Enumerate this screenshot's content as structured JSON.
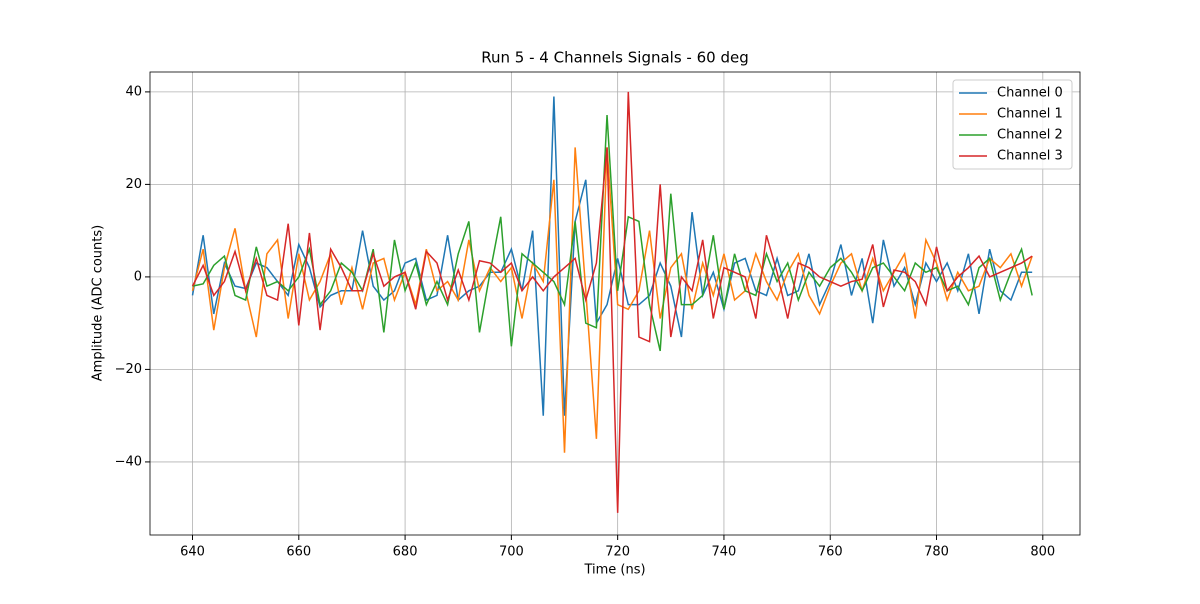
{
  "chart_data": {
    "type": "line",
    "title": "Run 5 - 4 Channels Signals - 60 deg",
    "x_label": "Time (ns)",
    "y_label": "Amplitude (ADC counts)",
    "x": [
      640,
      642,
      644,
      646,
      648,
      650,
      652,
      654,
      656,
      658,
      660,
      662,
      664,
      666,
      668,
      670,
      672,
      674,
      676,
      678,
      680,
      682,
      684,
      686,
      688,
      690,
      692,
      694,
      696,
      698,
      700,
      702,
      704,
      706,
      708,
      710,
      712,
      714,
      716,
      718,
      720,
      722,
      724,
      726,
      728,
      730,
      732,
      734,
      736,
      738,
      740,
      742,
      744,
      746,
      748,
      750,
      752,
      754,
      756,
      758,
      760,
      762,
      764,
      766,
      768,
      770,
      772,
      774,
      776,
      778,
      780,
      782,
      784,
      786,
      788,
      790,
      792,
      794,
      796,
      798
    ],
    "series": [
      {
        "name": "Channel 0",
        "color": "#1f77b4",
        "values": [
          -4,
          9,
          -8,
          3,
          -2,
          -2.5,
          3,
          2,
          -1,
          -4,
          7,
          2,
          -6.5,
          -4,
          -3,
          -3,
          10,
          -2,
          -5,
          -3,
          3,
          4,
          -5,
          -4,
          9,
          -5,
          -3,
          -2,
          1,
          1,
          6,
          -3,
          10,
          -30,
          39,
          -30,
          12,
          21,
          -10,
          -6,
          4,
          -6,
          -6,
          -4,
          3,
          -2,
          -13,
          14,
          -4,
          1,
          -7,
          3,
          4,
          -3,
          -4,
          4,
          -4,
          -3,
          5,
          -6,
          -1,
          7,
          -4,
          4,
          -10,
          8,
          -2,
          2,
          -6,
          3,
          -1,
          3,
          -3,
          5,
          -8,
          6,
          -3,
          -5,
          1,
          1
        ]
      },
      {
        "name": "Channel 1",
        "color": "#ff7f0e",
        "values": [
          -3,
          6,
          -11.5,
          2,
          10.5,
          -3,
          -13,
          5,
          8,
          -9,
          5,
          -5,
          -1,
          5,
          -6,
          2,
          -7,
          3,
          4,
          -5,
          1,
          -6,
          6,
          -3,
          -1,
          -5,
          8,
          -3,
          2,
          -1,
          2,
          -9,
          3,
          -1,
          21,
          -38,
          28,
          -3,
          -35,
          28,
          -6,
          -7,
          -3,
          10,
          -9,
          2,
          5,
          -7,
          3,
          -4,
          5,
          -5,
          -3,
          5,
          -1,
          -5,
          1,
          5,
          -4,
          -8,
          -2,
          3,
          5,
          -3,
          4,
          -3,
          1,
          5,
          -9,
          8,
          3,
          -5,
          1,
          -3,
          -2,
          4,
          2,
          5,
          -2,
          4.5
        ]
      },
      {
        "name": "Channel 2",
        "color": "#2ca02c",
        "values": [
          -2,
          -1.5,
          2.5,
          4.5,
          -4,
          -5,
          6.5,
          -2,
          -1,
          -3,
          0,
          6,
          -6,
          -3,
          3,
          1,
          -3,
          6,
          -12,
          8,
          -3,
          3,
          -6,
          -1,
          -6,
          5,
          12,
          -12,
          1,
          13,
          -15,
          5,
          3,
          1,
          -1,
          -6,
          12,
          -10,
          -11,
          35,
          -3,
          13,
          12,
          -6,
          -16,
          18,
          -6,
          -6,
          -4,
          9,
          -7,
          5,
          -3,
          -4,
          5,
          -1,
          3,
          -5,
          1,
          -2,
          2,
          4,
          1,
          -3,
          2,
          3,
          0,
          -3,
          3,
          1,
          2,
          -3,
          -2,
          -6,
          2,
          4,
          -5,
          1,
          6,
          -4
        ]
      },
      {
        "name": "Channel 3",
        "color": "#d62728",
        "values": [
          -2,
          2.5,
          -4,
          -1,
          5.5,
          -3,
          4,
          -4,
          -5,
          11.5,
          -10.5,
          9.5,
          -11.5,
          6,
          2,
          -3,
          -3,
          5,
          -2,
          0,
          1,
          -7,
          5.5,
          3,
          -5,
          1.5,
          -5,
          3.5,
          3,
          1,
          3,
          -3,
          0,
          -3,
          0,
          2,
          4,
          -5,
          3,
          28,
          -51,
          40,
          -13,
          -14,
          20,
          -13,
          0,
          -3,
          8,
          -9,
          2,
          1,
          0,
          -9,
          9,
          1,
          -9,
          3,
          2,
          0,
          -1,
          -2,
          -1,
          -0.5,
          7,
          -6.5,
          1.5,
          1,
          -1,
          -6,
          6.5,
          -3,
          0,
          2,
          4.5,
          0,
          1,
          2,
          3,
          4.5
        ]
      }
    ],
    "xlim": [
      632,
      807
    ],
    "ylim": [
      -55.8,
      44.3
    ],
    "xticks": [
      640,
      660,
      680,
      700,
      720,
      740,
      760,
      780,
      800
    ],
    "yticks": [
      {
        "value": -40,
        "label": "−40"
      },
      {
        "value": -20,
        "label": "−20"
      },
      0,
      20,
      40
    ],
    "grid": true,
    "legend": "upper right"
  }
}
